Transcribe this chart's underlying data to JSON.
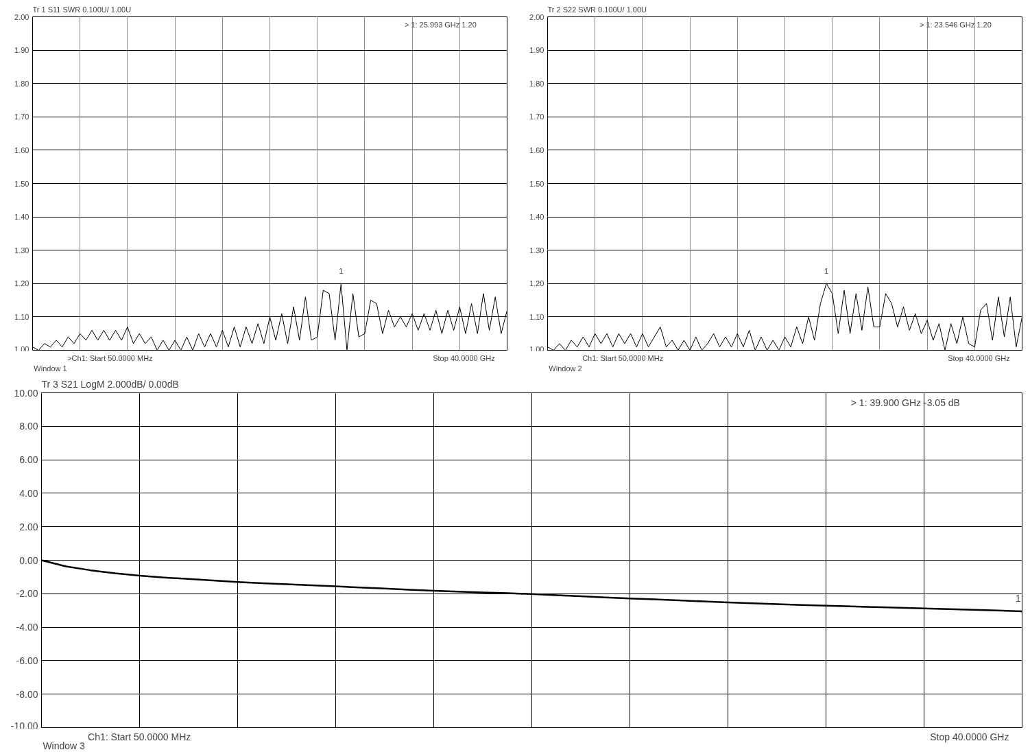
{
  "chart_data": [
    {
      "type": "line",
      "title": "Tr 1  S11 SWR 0.100U/ 1.00U",
      "grid": true,
      "tick_labels": "y",
      "line_style": "solid",
      "ylim": [
        1.0,
        2.0
      ],
      "yticks": [
        {
          "value": 1.0,
          "label": "1.00"
        },
        {
          "value": 1.1,
          "label": "1.10"
        },
        {
          "value": 1.2,
          "label": "1.20"
        },
        {
          "value": 1.3,
          "label": "1.30"
        },
        {
          "value": 1.4,
          "label": "1.40"
        },
        {
          "value": 1.5,
          "label": "1.50"
        },
        {
          "value": 1.6,
          "label": "1.60"
        },
        {
          "value": 1.7,
          "label": "1.70"
        },
        {
          "value": 1.8,
          "label": "1.80"
        },
        {
          "value": 1.9,
          "label": "1.90"
        },
        {
          "value": 2.0,
          "label": "2.00"
        }
      ],
      "categories": [
        null,
        null,
        null,
        null,
        null,
        null,
        null,
        null,
        null,
        null,
        null,
        null,
        null,
        null,
        null,
        null,
        null,
        null,
        null,
        null,
        null,
        null,
        null,
        null,
        null,
        null,
        null,
        null,
        null,
        null,
        null,
        null,
        null,
        null,
        null,
        null,
        null,
        null,
        null,
        null,
        null,
        null,
        null,
        null,
        null,
        null,
        null,
        null,
        null,
        null,
        null,
        null,
        null,
        null,
        null,
        null,
        null,
        null,
        null,
        null,
        null,
        null,
        null,
        null,
        null,
        null,
        null,
        null,
        null,
        null,
        null,
        null,
        null,
        null,
        null,
        null,
        null,
        null,
        null,
        null,
        null
      ],
      "series": [
        {
          "color": "#000000",
          "values": [
            1.01,
            1.0,
            1.02,
            1.01,
            1.03,
            1.01,
            1.04,
            1.02,
            1.05,
            1.03,
            1.06,
            1.03,
            1.06,
            1.03,
            1.06,
            1.03,
            1.07,
            1.02,
            1.05,
            1.02,
            1.04,
            1.0,
            1.03,
            1.0,
            1.03,
            1.0,
            1.04,
            1.0,
            1.05,
            1.01,
            1.05,
            1.01,
            1.06,
            1.01,
            1.07,
            1.01,
            1.07,
            1.02,
            1.08,
            1.02,
            1.1,
            1.03,
            1.11,
            1.02,
            1.13,
            1.03,
            1.16,
            1.03,
            1.04,
            1.18,
            1.17,
            1.03,
            1.2,
            1.0,
            1.17,
            1.04,
            1.05,
            1.15,
            1.14,
            1.05,
            1.12,
            1.07,
            1.1,
            1.07,
            1.11,
            1.06,
            1.11,
            1.06,
            1.12,
            1.05,
            1.12,
            1.06,
            1.13,
            1.05,
            1.14,
            1.05,
            1.17,
            1.06,
            1.16,
            1.05,
            1.12
          ]
        }
      ],
      "annotations": [
        "> 1:    25.993  GHz          1.20",
        ">Ch1:  Start  50.0000 MHz",
        "Stop  40.0000 GHz",
        "Window 1",
        {
          "text": "1",
          "y": 1.2
        }
      ]
    },
    {
      "type": "line",
      "title": "Tr 2  S22 SWR 0.100U/ 1.00U",
      "grid": true,
      "tick_labels": "y",
      "line_style": "solid",
      "ylim": [
        1.0,
        2.0
      ],
      "yticks": [
        {
          "value": 1.0,
          "label": "1.00"
        },
        {
          "value": 1.1,
          "label": "1.10"
        },
        {
          "value": 1.2,
          "label": "1.20"
        },
        {
          "value": 1.3,
          "label": "1.30"
        },
        {
          "value": 1.4,
          "label": "1.40"
        },
        {
          "value": 1.5,
          "label": "1.50"
        },
        {
          "value": 1.6,
          "label": "1.60"
        },
        {
          "value": 1.7,
          "label": "1.70"
        },
        {
          "value": 1.8,
          "label": "1.80"
        },
        {
          "value": 1.9,
          "label": "1.90"
        },
        {
          "value": 2.0,
          "label": "2.00"
        }
      ],
      "categories": [
        null,
        null,
        null,
        null,
        null,
        null,
        null,
        null,
        null,
        null,
        null,
        null,
        null,
        null,
        null,
        null,
        null,
        null,
        null,
        null,
        null,
        null,
        null,
        null,
        null,
        null,
        null,
        null,
        null,
        null,
        null,
        null,
        null,
        null,
        null,
        null,
        null,
        null,
        null,
        null,
        null,
        null,
        null,
        null,
        null,
        null,
        null,
        null,
        null,
        null,
        null,
        null,
        null,
        null,
        null,
        null,
        null,
        null,
        null,
        null,
        null,
        null,
        null,
        null,
        null,
        null,
        null,
        null,
        null,
        null,
        null,
        null,
        null,
        null,
        null,
        null,
        null,
        null,
        null,
        null,
        null
      ],
      "series": [
        {
          "color": "#000000",
          "values": [
            1.01,
            1.0,
            1.02,
            1.0,
            1.03,
            1.01,
            1.04,
            1.01,
            1.05,
            1.02,
            1.05,
            1.01,
            1.05,
            1.02,
            1.05,
            1.01,
            1.05,
            1.01,
            1.04,
            1.07,
            1.01,
            1.03,
            1.0,
            1.03,
            1.0,
            1.04,
            1.0,
            1.02,
            1.05,
            1.01,
            1.04,
            1.01,
            1.05,
            1.01,
            1.06,
            1.0,
            1.04,
            1.0,
            1.03,
            1.0,
            1.04,
            1.01,
            1.07,
            1.02,
            1.1,
            1.03,
            1.14,
            1.2,
            1.17,
            1.05,
            1.18,
            1.05,
            1.17,
            1.06,
            1.19,
            1.07,
            1.07,
            1.17,
            1.14,
            1.07,
            1.13,
            1.06,
            1.11,
            1.05,
            1.09,
            1.03,
            1.08,
            1.0,
            1.08,
            1.02,
            1.1,
            1.02,
            1.01,
            1.12,
            1.14,
            1.03,
            1.16,
            1.04,
            1.16,
            1.01,
            1.1
          ]
        }
      ],
      "annotations": [
        "> 1:    23.546  GHz          1.20",
        "Ch1:  Start  50.0000 MHz",
        "Stop  40.0000 GHz",
        "Window 2",
        {
          "text": "1",
          "y": 1.2
        }
      ]
    },
    {
      "type": "line",
      "title": "Tr 3   S21 LogM 2.000dB/  0.00dB",
      "grid": true,
      "tick_labels": "y",
      "line_style": "solid",
      "ylim": [
        -10,
        10
      ],
      "yticks": [
        {
          "value": 10,
          "label": "10.00"
        },
        {
          "value": 8,
          "label": "8.00"
        },
        {
          "value": 6,
          "label": "6.00"
        },
        {
          "value": 4,
          "label": "4.00"
        },
        {
          "value": 2,
          "label": "2.00"
        },
        {
          "value": 0,
          "label": "0.00"
        },
        {
          "value": -2,
          "label": "-2.00"
        },
        {
          "value": -4,
          "label": "-4.00"
        },
        {
          "value": -6,
          "label": "-6.00"
        },
        {
          "value": -8,
          "label": "-8.00"
        },
        {
          "value": -10,
          "label": "-10.00"
        }
      ],
      "categories": [
        null,
        null,
        null,
        null,
        null,
        null,
        null,
        null,
        null,
        null,
        null,
        null,
        null,
        null,
        null,
        null,
        null,
        null,
        null,
        null,
        null,
        null,
        null,
        null,
        null,
        null,
        null,
        null,
        null,
        null,
        null,
        null,
        null,
        null,
        null,
        null,
        null,
        null,
        null,
        null,
        null
      ],
      "series": [
        {
          "color": "#000000",
          "values": [
            0.0,
            -0.37,
            -0.6,
            -0.78,
            -0.92,
            -1.03,
            -1.12,
            -1.21,
            -1.3,
            -1.37,
            -1.43,
            -1.5,
            -1.56,
            -1.63,
            -1.69,
            -1.76,
            -1.82,
            -1.88,
            -1.93,
            -1.97,
            -2.02,
            -2.09,
            -2.15,
            -2.22,
            -2.28,
            -2.34,
            -2.4,
            -2.46,
            -2.52,
            -2.57,
            -2.62,
            -2.67,
            -2.72,
            -2.76,
            -2.8,
            -2.84,
            -2.88,
            -2.92,
            -2.96,
            -3.0,
            -3.05
          ]
        }
      ],
      "annotations": [
        "> 1:      39.900  GHz                 -3.05 dB",
        "Ch1:  Start   50.0000 MHz",
        "Stop  40.0000 GHz",
        "Window 3",
        {
          "text": "1",
          "y": -3.05
        }
      ]
    }
  ]
}
